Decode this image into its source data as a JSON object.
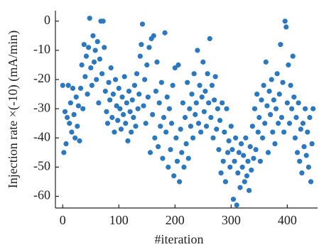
{
  "chart_data": {
    "type": "scatter",
    "xlabel": "#iteration",
    "ylabel": "Injection rate ×(-10) (mA/min)",
    "color": "#2a78c0",
    "xlim": [
      -13,
      454
    ],
    "ylim": [
      -64,
      3.6
    ],
    "xticks": [
      0,
      100,
      200,
      300,
      400
    ],
    "yticks": [
      0,
      -10,
      -20,
      -30,
      -40,
      -50,
      -60
    ],
    "x": [
      0,
      2,
      4,
      6,
      8,
      10,
      12,
      14,
      16,
      18,
      20,
      22,
      24,
      26,
      28,
      30,
      32,
      34,
      36,
      38,
      40,
      42,
      44,
      46,
      48,
      50,
      52,
      54,
      56,
      58,
      60,
      62,
      64,
      66,
      68,
      70,
      72,
      74,
      76,
      78,
      80,
      82,
      84,
      86,
      88,
      90,
      92,
      94,
      96,
      98,
      100,
      102,
      104,
      106,
      108,
      110,
      112,
      114,
      116,
      118,
      120,
      122,
      124,
      126,
      128,
      130,
      132,
      134,
      136,
      138,
      140,
      142,
      144,
      146,
      148,
      150,
      152,
      154,
      156,
      158,
      160,
      162,
      164,
      166,
      168,
      170,
      172,
      174,
      176,
      178,
      180,
      182,
      184,
      186,
      188,
      190,
      192,
      194,
      196,
      198,
      200,
      202,
      204,
      206,
      208,
      210,
      212,
      214,
      216,
      218,
      220,
      222,
      224,
      226,
      228,
      230,
      232,
      234,
      236,
      238,
      240,
      242,
      244,
      246,
      248,
      250,
      252,
      254,
      256,
      258,
      260,
      262,
      264,
      266,
      268,
      270,
      272,
      274,
      276,
      278,
      280,
      282,
      284,
      286,
      288,
      290,
      292,
      294,
      296,
      298,
      300,
      302,
      304,
      306,
      308,
      310,
      312,
      314,
      316,
      318,
      320,
      322,
      324,
      326,
      328,
      330,
      332,
      334,
      336,
      338,
      340,
      342,
      344,
      346,
      348,
      350,
      352,
      354,
      356,
      358,
      360,
      362,
      364,
      366,
      368,
      370,
      372,
      374,
      376,
      378,
      380,
      382,
      384,
      386,
      388,
      390,
      392,
      394,
      396,
      398,
      400,
      402,
      404,
      406,
      408,
      410,
      412,
      414,
      416,
      418,
      420,
      422,
      424,
      426,
      428,
      430,
      432,
      434,
      436,
      438,
      440,
      442,
      444,
      446
    ],
    "values": [
      -22,
      -45,
      -31,
      -42,
      -33,
      -22,
      -35,
      -28,
      -38,
      -23,
      -32,
      -40,
      -26,
      -36,
      -29,
      -41,
      -23,
      -15,
      -30,
      -8,
      -19,
      -12,
      -25,
      -9,
      1,
      -16,
      -22,
      -5,
      -14,
      -10,
      -20,
      -7,
      -28,
      -13,
      0,
      -18,
      0,
      -9,
      -24,
      -31,
      -35,
      -21,
      -27,
      -16,
      -33,
      -25,
      -38,
      -20,
      -29,
      -34,
      -23,
      -30,
      -37,
      -26,
      -32,
      -19,
      -35,
      -28,
      -41,
      -24,
      -31,
      -38,
      -27,
      -33,
      -22,
      -36,
      -18,
      -30,
      -25,
      -12,
      -8,
      -1,
      -29,
      -20,
      -35,
      -15,
      -26,
      -9,
      -45,
      -6,
      -32,
      -5,
      -40,
      -24,
      -14,
      -43,
      -28,
      -36,
      -21,
      -47,
      -33,
      -4,
      -38,
      -26,
      -50,
      -30,
      -44,
      -35,
      -22,
      -53,
      -16,
      -40,
      -48,
      -15,
      -55,
      -37,
      -45,
      -28,
      -50,
      -33,
      -42,
      -21,
      -47,
      -30,
      -36,
      -25,
      -40,
      -18,
      -32,
      -28,
      -10,
      -35,
      -22,
      -38,
      -26,
      -14,
      -31,
      -24,
      -36,
      -18,
      -28,
      -6,
      -33,
      -22,
      -40,
      -27,
      -19,
      -37,
      -30,
      -44,
      -34,
      -52,
      -28,
      -48,
      -38,
      -55,
      -30,
      -45,
      -41,
      -50,
      -36,
      -44,
      -61,
      -48,
      -40,
      -63,
      -52,
      -45,
      -57,
      -42,
      -50,
      -46,
      -55,
      -40,
      -53,
      -48,
      -58,
      -43,
      -51,
      -36,
      -47,
      -30,
      -44,
      -25,
      -38,
      -33,
      -48,
      -27,
      -40,
      -22,
      -35,
      -14,
      -29,
      -45,
      -24,
      -32,
      -20,
      -38,
      -27,
      -42,
      -30,
      -18,
      -35,
      -25,
      -8,
      -33,
      -21,
      -38,
      0,
      -2,
      -28,
      -15,
      -35,
      -22,
      -30,
      -12,
      -26,
      -40,
      -33,
      -45,
      -28,
      -48,
      -37,
      -52,
      -35,
      -43,
      -30,
      -46,
      -38,
      -50,
      -33,
      -55,
      -42,
      -30
    ]
  }
}
